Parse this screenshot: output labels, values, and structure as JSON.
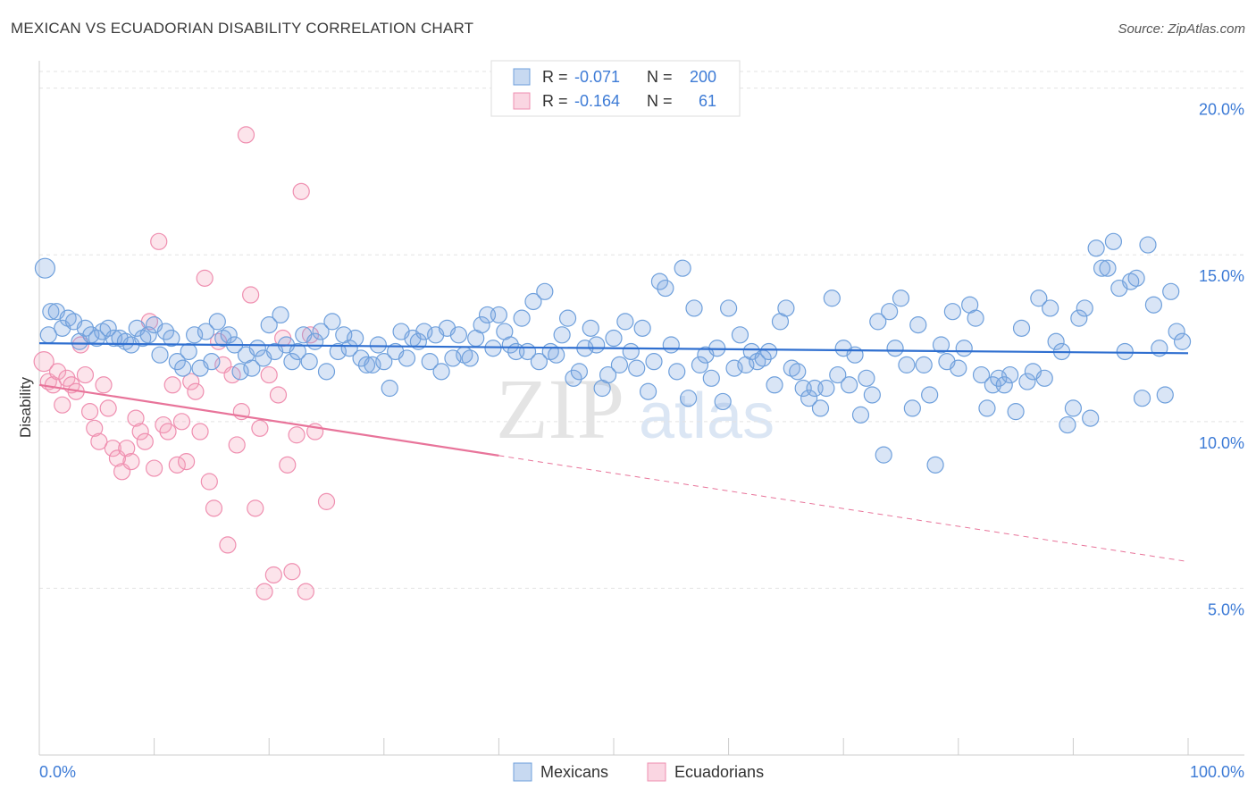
{
  "title": "MEXICAN VS ECUADORIAN DISABILITY CORRELATION CHART",
  "source": "Source: ZipAtlas.com",
  "watermark": {
    "zip": "ZIP",
    "atlas": "atlas"
  },
  "colors": {
    "blue": "#6fa0dc",
    "blue_fill": "rgba(130,170,225,0.30)",
    "blue_line": "#2f6fd0",
    "pink": "#ef8fb0",
    "pink_fill": "rgba(245,165,190,0.30)",
    "pink_line": "#e8749a",
    "label": "#3d7bd6"
  },
  "legend": {
    "rows": [
      {
        "r_label": "R = ",
        "r_value": "-0.071",
        "n_label": "N = ",
        "n_value": "200"
      },
      {
        "r_label": "R = ",
        "r_value": "-0.164",
        "n_label": "N = ",
        "n_value": "61"
      }
    ]
  },
  "bottom_legend": [
    "Mexicans",
    "Ecuadorians"
  ],
  "chart_data": {
    "type": "scatter",
    "title": "MEXICAN VS ECUADORIAN DISABILITY CORRELATION CHART",
    "ylabel": "Disability",
    "xlabel": "",
    "xlim": [
      0,
      100
    ],
    "ylim": [
      0,
      20.5
    ],
    "x_tick_labels": [
      "0.0%",
      "100.0%"
    ],
    "y_ticks": [
      5,
      10,
      15,
      20
    ],
    "y_tick_labels": [
      "5.0%",
      "10.0%",
      "15.0%",
      "20.0%"
    ],
    "grid": true,
    "series": [
      {
        "name": "Mexicans",
        "R": -0.071,
        "N": 200,
        "trend": {
          "x0": 0,
          "y0": 12.35,
          "x1": 100,
          "y1": 12.05,
          "dashed_from": null
        },
        "points": [
          [
            0.5,
            14.6
          ],
          [
            1,
            13.3
          ],
          [
            1.5,
            13.3
          ],
          [
            2,
            12.8
          ],
          [
            2.5,
            13.1
          ],
          [
            3,
            13
          ],
          [
            3.5,
            12.4
          ],
          [
            4,
            12.8
          ],
          [
            4.5,
            12.6
          ],
          [
            5,
            12.5
          ],
          [
            5.5,
            12.7
          ],
          [
            6,
            12.8
          ],
          [
            6.5,
            12.5
          ],
          [
            7,
            12.5
          ],
          [
            7.5,
            12.4
          ],
          [
            8,
            12.3
          ],
          [
            8.5,
            12.8
          ],
          [
            9,
            12.5
          ],
          [
            9.5,
            12.6
          ],
          [
            10,
            12.9
          ],
          [
            10.5,
            12
          ],
          [
            11,
            12.7
          ],
          [
            11.5,
            12.5
          ],
          [
            12,
            11.8
          ],
          [
            12.5,
            11.6
          ],
          [
            13,
            12.1
          ],
          [
            13.5,
            12.6
          ],
          [
            14,
            11.6
          ],
          [
            14.5,
            12.7
          ],
          [
            15,
            11.8
          ],
          [
            15.5,
            13
          ],
          [
            16,
            12.5
          ],
          [
            16.5,
            12.6
          ],
          [
            17,
            12.3
          ],
          [
            17.5,
            11.5
          ],
          [
            18,
            12
          ],
          [
            18.5,
            11.6
          ],
          [
            19,
            12.2
          ],
          [
            19.5,
            11.9
          ],
          [
            20,
            12.9
          ],
          [
            20.5,
            12.1
          ],
          [
            21,
            13.2
          ],
          [
            21.5,
            12.3
          ],
          [
            22,
            11.8
          ],
          [
            22.5,
            12.1
          ],
          [
            23,
            12.6
          ],
          [
            23.5,
            11.8
          ],
          [
            24,
            12.4
          ],
          [
            24.5,
            12.7
          ],
          [
            25,
            11.5
          ],
          [
            25.5,
            13
          ],
          [
            26,
            12.1
          ],
          [
            26.5,
            12.6
          ],
          [
            27,
            12.2
          ],
          [
            27.5,
            12.5
          ],
          [
            28,
            11.9
          ],
          [
            28.5,
            11.7
          ],
          [
            29,
            11.7
          ],
          [
            29.5,
            12.3
          ],
          [
            30,
            11.8
          ],
          [
            30.5,
            11
          ],
          [
            31,
            12.1
          ],
          [
            31.5,
            12.7
          ],
          [
            32,
            11.9
          ],
          [
            32.5,
            12.5
          ],
          [
            33,
            12.4
          ],
          [
            33.5,
            12.7
          ],
          [
            34,
            11.8
          ],
          [
            34.5,
            12.6
          ],
          [
            35,
            11.5
          ],
          [
            35.5,
            12.8
          ],
          [
            36,
            11.9
          ],
          [
            36.5,
            12.6
          ],
          [
            37,
            12
          ],
          [
            37.5,
            11.9
          ],
          [
            38,
            12.5
          ],
          [
            38.5,
            12.9
          ],
          [
            39,
            13.2
          ],
          [
            39.5,
            12.2
          ],
          [
            40,
            13.2
          ],
          [
            40.5,
            12.7
          ],
          [
            41,
            12.3
          ],
          [
            41.5,
            12.1
          ],
          [
            42,
            13.1
          ],
          [
            42.5,
            12.1
          ],
          [
            43,
            13.6
          ],
          [
            43.5,
            11.8
          ],
          [
            44,
            13.9
          ],
          [
            44.5,
            12.1
          ],
          [
            45,
            12
          ],
          [
            45.5,
            12.6
          ],
          [
            46,
            13.1
          ],
          [
            46.5,
            11.3
          ],
          [
            47,
            11.5
          ],
          [
            47.5,
            12.2
          ],
          [
            48,
            12.8
          ],
          [
            48.5,
            12.3
          ],
          [
            49,
            11
          ],
          [
            49.5,
            11.4
          ],
          [
            50,
            12.5
          ],
          [
            50.5,
            11.7
          ],
          [
            51,
            13
          ],
          [
            51.5,
            12.1
          ],
          [
            52,
            11.6
          ],
          [
            52.5,
            12.8
          ],
          [
            53,
            10.9
          ],
          [
            53.5,
            11.8
          ],
          [
            54,
            14.2
          ],
          [
            54.5,
            14
          ],
          [
            55,
            12.3
          ],
          [
            55.5,
            11.5
          ],
          [
            56,
            14.6
          ],
          [
            56.5,
            10.7
          ],
          [
            57,
            13.4
          ],
          [
            57.5,
            11.7
          ],
          [
            58,
            12
          ],
          [
            58.5,
            11.3
          ],
          [
            59,
            12.2
          ],
          [
            59.5,
            10.6
          ],
          [
            60,
            13.4
          ],
          [
            60.5,
            11.6
          ],
          [
            61,
            12.6
          ],
          [
            61.5,
            11.7
          ],
          [
            62,
            12.1
          ],
          [
            62.5,
            11.8
          ],
          [
            63,
            11.9
          ],
          [
            63.5,
            12.1
          ],
          [
            64,
            11.1
          ],
          [
            64.5,
            13
          ],
          [
            65,
            13.4
          ],
          [
            65.5,
            11.6
          ],
          [
            66,
            11.5
          ],
          [
            66.5,
            11
          ],
          [
            67,
            10.7
          ],
          [
            67.5,
            11
          ],
          [
            68,
            10.4
          ],
          [
            68.5,
            11
          ],
          [
            69,
            13.7
          ],
          [
            69.5,
            11.4
          ],
          [
            70,
            12.2
          ],
          [
            70.5,
            11.1
          ],
          [
            71,
            12
          ],
          [
            71.5,
            10.2
          ],
          [
            72,
            11.3
          ],
          [
            72.5,
            10.8
          ],
          [
            73,
            13
          ],
          [
            73.5,
            9
          ],
          [
            74,
            13.3
          ],
          [
            74.5,
            12.2
          ],
          [
            75,
            13.7
          ],
          [
            75.5,
            11.7
          ],
          [
            76,
            10.4
          ],
          [
            76.5,
            12.9
          ],
          [
            77,
            11.7
          ],
          [
            77.5,
            10.8
          ],
          [
            78,
            8.7
          ],
          [
            78.5,
            12.3
          ],
          [
            79,
            11.8
          ],
          [
            79.5,
            13.3
          ],
          [
            80,
            11.6
          ],
          [
            80.5,
            12.2
          ],
          [
            81,
            13.5
          ],
          [
            81.5,
            13.1
          ],
          [
            82,
            11.4
          ],
          [
            82.5,
            10.4
          ],
          [
            83,
            11.1
          ],
          [
            83.5,
            11.3
          ],
          [
            84,
            11.1
          ],
          [
            84.5,
            11.4
          ],
          [
            85,
            10.3
          ],
          [
            85.5,
            12.8
          ],
          [
            86,
            11.2
          ],
          [
            86.5,
            11.5
          ],
          [
            87,
            13.7
          ],
          [
            87.5,
            11.3
          ],
          [
            88,
            13.4
          ],
          [
            88.5,
            12.4
          ],
          [
            89,
            12.1
          ],
          [
            89.5,
            9.9
          ],
          [
            90,
            10.4
          ],
          [
            90.5,
            13.1
          ],
          [
            91,
            13.4
          ],
          [
            91.5,
            10.1
          ],
          [
            92,
            15.2
          ],
          [
            92.5,
            14.6
          ],
          [
            93,
            14.6
          ],
          [
            93.5,
            15.4
          ],
          [
            94,
            14
          ],
          [
            94.5,
            12.1
          ],
          [
            95,
            14.2
          ],
          [
            95.5,
            14.3
          ],
          [
            96,
            10.7
          ],
          [
            96.5,
            15.3
          ],
          [
            97,
            13.5
          ],
          [
            97.5,
            12.2
          ],
          [
            98,
            10.8
          ],
          [
            98.5,
            13.9
          ],
          [
            99,
            12.7
          ],
          [
            99.5,
            12.4
          ],
          [
            0.8,
            12.6
          ]
        ]
      },
      {
        "name": "Ecuadorians",
        "R": -0.164,
        "N": 61,
        "trend": {
          "x0": 0,
          "y0": 11.1,
          "x1": 100,
          "y1": 5.8,
          "dashed_from": 40
        },
        "points": [
          [
            0.4,
            11.8
          ],
          [
            0.8,
            11.2
          ],
          [
            1.2,
            11.1
          ],
          [
            1.6,
            11.5
          ],
          [
            2,
            10.5
          ],
          [
            2.4,
            11.3
          ],
          [
            2.8,
            11.1
          ],
          [
            3.2,
            10.9
          ],
          [
            3.6,
            12.3
          ],
          [
            4,
            11.4
          ],
          [
            4.4,
            10.3
          ],
          [
            4.8,
            9.8
          ],
          [
            5.2,
            9.4
          ],
          [
            5.6,
            11.1
          ],
          [
            6,
            10.4
          ],
          [
            6.4,
            9.2
          ],
          [
            6.8,
            8.9
          ],
          [
            7.2,
            8.5
          ],
          [
            7.6,
            9.2
          ],
          [
            8,
            8.8
          ],
          [
            8.4,
            10.1
          ],
          [
            8.8,
            9.7
          ],
          [
            9.2,
            9.4
          ],
          [
            9.6,
            13
          ],
          [
            10,
            8.6
          ],
          [
            10.4,
            15.4
          ],
          [
            10.8,
            9.9
          ],
          [
            11.2,
            9.7
          ],
          [
            11.6,
            11.1
          ],
          [
            12,
            8.7
          ],
          [
            12.4,
            10
          ],
          [
            12.8,
            8.8
          ],
          [
            13.2,
            11.2
          ],
          [
            13.6,
            10.9
          ],
          [
            14,
            9.7
          ],
          [
            14.4,
            14.3
          ],
          [
            14.8,
            8.2
          ],
          [
            15.2,
            7.4
          ],
          [
            15.6,
            12.4
          ],
          [
            16,
            11.7
          ],
          [
            16.4,
            6.3
          ],
          [
            16.8,
            11.4
          ],
          [
            17.2,
            9.3
          ],
          [
            17.6,
            10.3
          ],
          [
            18,
            18.6
          ],
          [
            18.4,
            13.8
          ],
          [
            18.8,
            7.4
          ],
          [
            19.2,
            9.8
          ],
          [
            19.6,
            4.9
          ],
          [
            20,
            11.4
          ],
          [
            20.4,
            5.4
          ],
          [
            20.8,
            10.8
          ],
          [
            21.2,
            12.5
          ],
          [
            21.6,
            8.7
          ],
          [
            22,
            5.5
          ],
          [
            22.4,
            9.6
          ],
          [
            22.8,
            16.9
          ],
          [
            23.2,
            4.9
          ],
          [
            23.6,
            12.6
          ],
          [
            24,
            9.7
          ],
          [
            25,
            7.6
          ]
        ]
      }
    ]
  }
}
